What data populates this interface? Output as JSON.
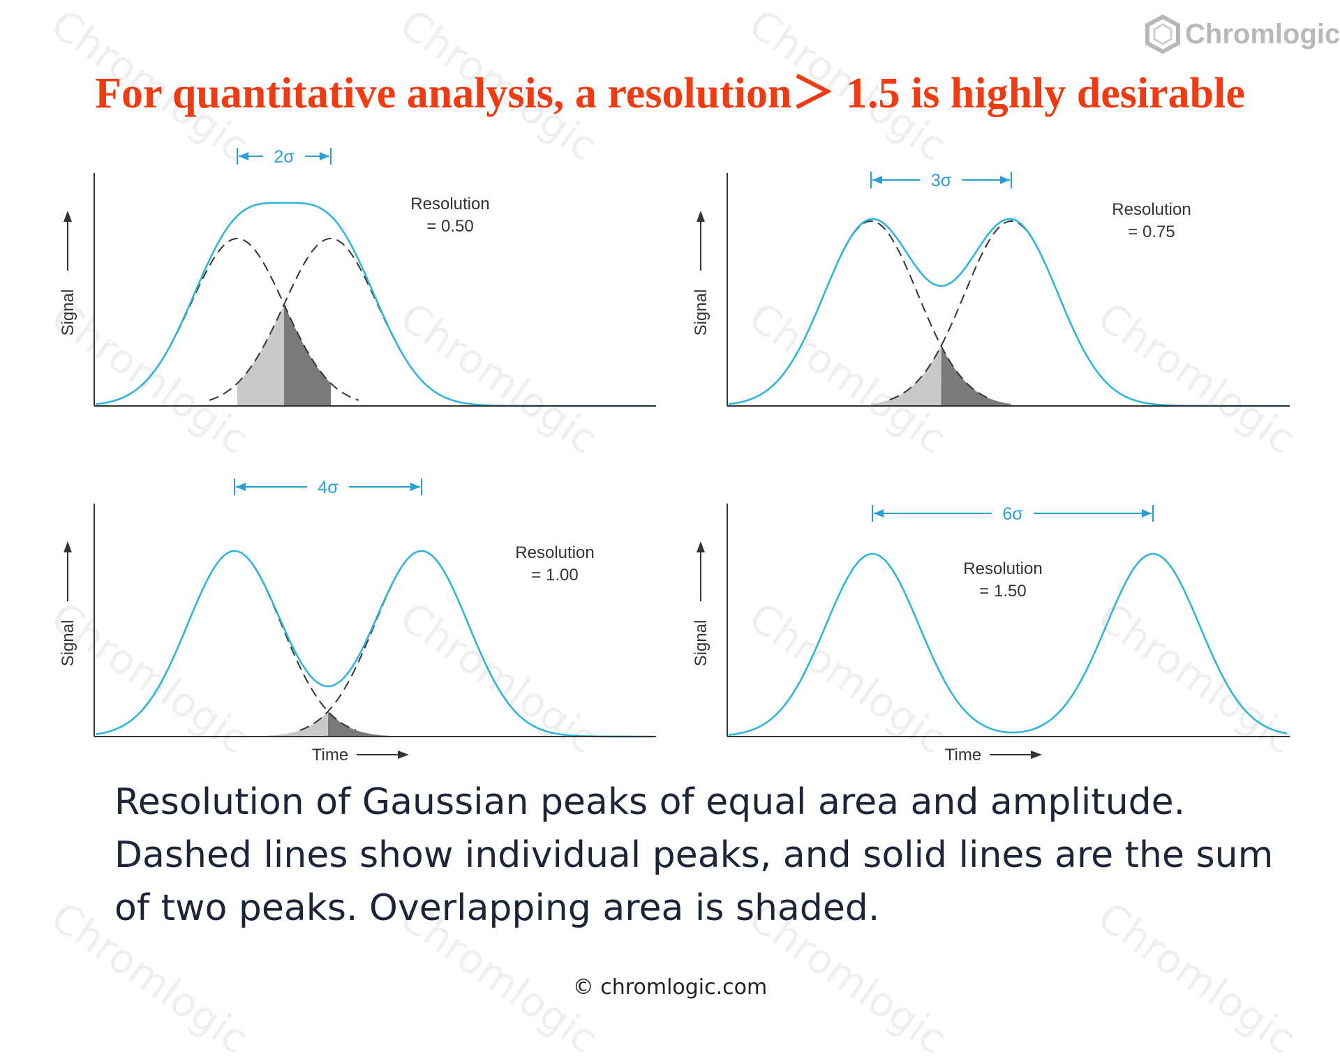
{
  "title": "For quantitative analysis, a resolution＞ 1.5 is highly desirable",
  "brand": {
    "name": "Chromlogic",
    "icon": "hexagon-logo-icon"
  },
  "watermark": "Chromlogic",
  "colors": {
    "title": "#ee3b12",
    "sum_curve": "#2fb5dd",
    "dimension": "#2a9fd6",
    "dashed": "#333333",
    "shade_light": "#c9c9c9",
    "shade_dark": "#7a7a7a",
    "caption": "#1c2438"
  },
  "chart_data": [
    {
      "type": "line",
      "spacing_label": "2σ",
      "resolution_label": "Resolution",
      "resolution_value": "= 0.50",
      "resolution": 0.5,
      "separation_sigma": 2,
      "ylabel": "Signal",
      "xlabel": "",
      "series": [
        {
          "values": "sum of two equal gaussian peaks"
        }
      ],
      "shaded_overlap": true
    },
    {
      "type": "line",
      "spacing_label": "3σ",
      "resolution_label": "Resolution",
      "resolution_value": "= 0.75",
      "resolution": 0.75,
      "separation_sigma": 3,
      "ylabel": "Signal",
      "xlabel": "",
      "shaded_overlap": true
    },
    {
      "type": "line",
      "spacing_label": "4σ",
      "resolution_label": "Resolution",
      "resolution_value": "= 1.00",
      "resolution": 1.0,
      "separation_sigma": 4,
      "ylabel": "Signal",
      "xlabel": "Time",
      "shaded_overlap": true
    },
    {
      "type": "line",
      "spacing_label": "6σ",
      "resolution_label": "Resolution",
      "resolution_value": "= 1.50",
      "resolution": 1.5,
      "separation_sigma": 6,
      "ylabel": "Signal",
      "xlabel": "Time",
      "shaded_overlap": false
    }
  ],
  "caption": [
    "Resolution of Gaussian peaks of equal area and amplitude.",
    "Dashed lines show individual peaks, and solid lines are the sum",
    "of two peaks. Overlapping area is shaded."
  ],
  "footer": "© chromlogic.com"
}
